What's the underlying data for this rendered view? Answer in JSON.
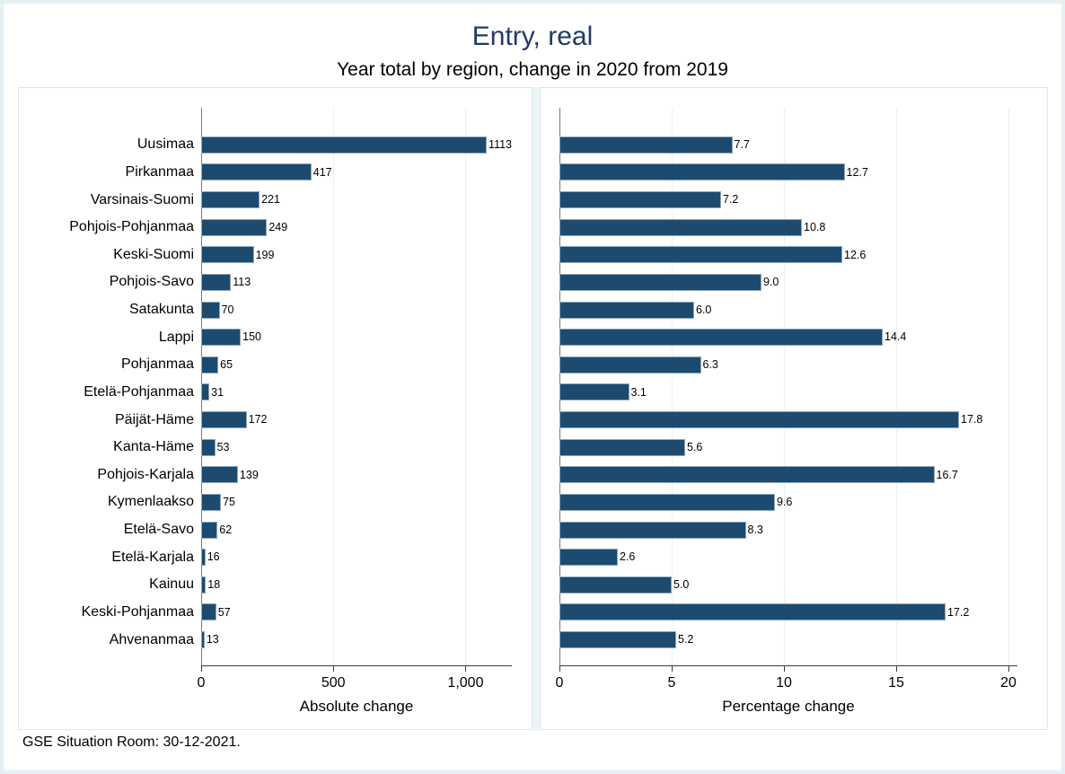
{
  "title": "Entry, real",
  "subtitle": "Year total by region, change in 2020 from 2019",
  "footer": "GSE Situation Room: 30-12-2021.",
  "colors": {
    "bar_fill": "#1d4b6f",
    "bar_outline": "#8fa8bc",
    "title_text": "#213a66",
    "frame": "#e6eff3",
    "panel_border": "#dde9ee",
    "gridline": "#e7f0f5",
    "xaxis_line": "#3d3d3d",
    "yaxis_line": "#7a7a7a"
  },
  "chart_data": {
    "type": "bar",
    "orientation": "horizontal",
    "grid": true,
    "categories": [
      "Uusimaa",
      "Pirkanmaa",
      "Varsinais-Suomi",
      "Pohjois-Pohjanmaa",
      "Keski-Suomi",
      "Pohjois-Savo",
      "Satakunta",
      "Lappi",
      "Pohjanmaa",
      "Etelä-Pohjanmaa",
      "Päijät-Häme",
      "Kanta-Häme",
      "Pohjois-Karjala",
      "Kymenlaakso",
      "Etelä-Savo",
      "Etelä-Karjala",
      "Kainuu",
      "Keski-Pohjanmaa",
      "Ahvenanmaa"
    ],
    "series": [
      {
        "name": "Absolute change",
        "xlabel": "Absolute change",
        "values": [
          1113,
          417,
          221,
          249,
          199,
          113,
          70,
          150,
          65,
          31,
          172,
          53,
          139,
          75,
          62,
          16,
          18,
          57,
          13
        ],
        "value_labels": [
          "1113",
          "417",
          "221",
          "249",
          "199",
          "113",
          "70",
          "150",
          "65",
          "31",
          "172",
          "53",
          "139",
          "75",
          "62",
          "16",
          "18",
          "57",
          "13"
        ],
        "xlim": [
          0,
          1175
        ],
        "xticks": [
          0,
          500,
          1000
        ],
        "xtick_labels": [
          "0",
          "500",
          "1,000"
        ]
      },
      {
        "name": "Percentage change",
        "xlabel": "Percentage change",
        "values": [
          7.7,
          12.7,
          7.2,
          10.8,
          12.6,
          9.0,
          6.0,
          14.4,
          6.3,
          3.1,
          17.8,
          5.6,
          16.7,
          9.6,
          8.3,
          2.6,
          5.0,
          17.2,
          5.2
        ],
        "value_labels": [
          "7.7",
          "12.7",
          "7.2",
          "10.8",
          "12.6",
          "9.0",
          "6.0",
          "14.4",
          "6.3",
          "3.1",
          "17.8",
          "5.6",
          "16.7",
          "9.6",
          "8.3",
          "2.6",
          "5.0",
          "17.2",
          "5.2"
        ],
        "xlim": [
          0,
          20.4
        ],
        "xticks": [
          0,
          5,
          10,
          15,
          20
        ],
        "xtick_labels": [
          "0",
          "5",
          "10",
          "15",
          "20"
        ]
      }
    ]
  }
}
